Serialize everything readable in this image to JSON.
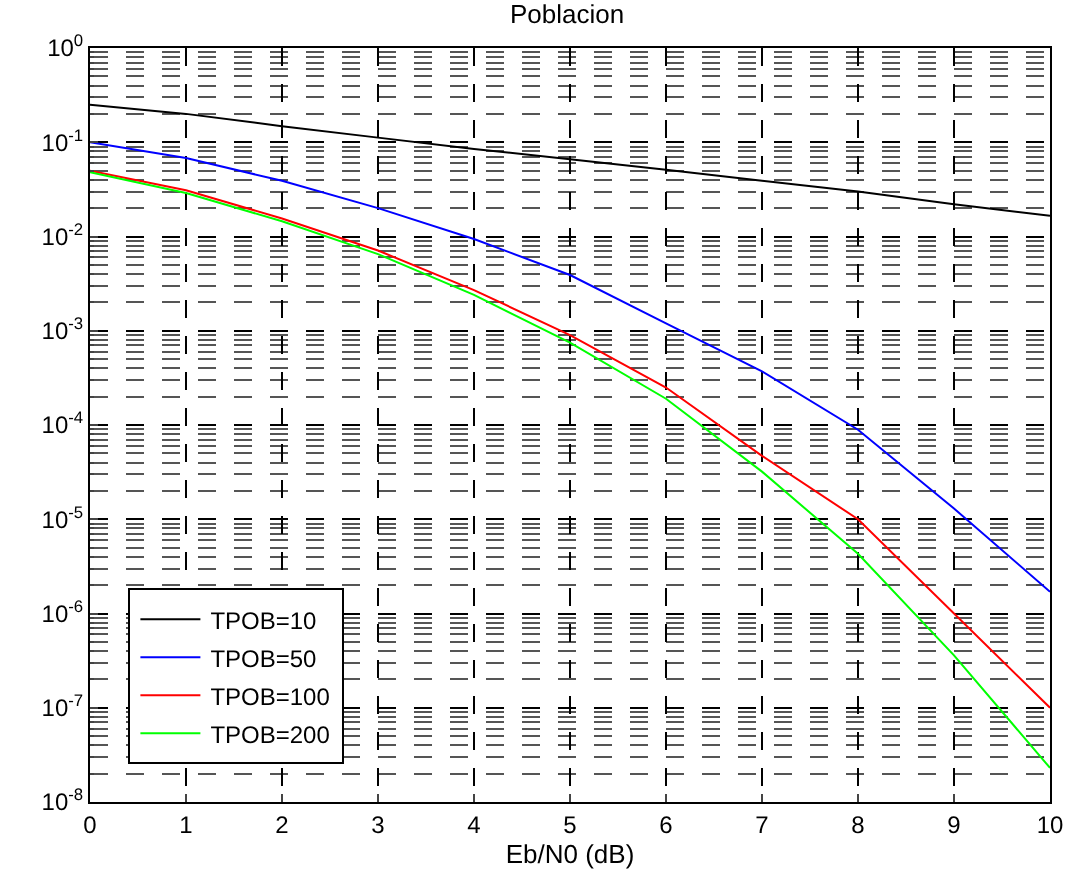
{
  "chart_data": {
    "type": "line",
    "title": "Poblacion",
    "xlabel": "Eb/N0 (dB)",
    "x": [
      0,
      1,
      2,
      3,
      4,
      5,
      6,
      7,
      8,
      9,
      10
    ],
    "series": [
      {
        "name": "TPOB=10",
        "color": "#000000",
        "values": [
          0.25,
          0.2,
          0.148,
          0.112,
          0.085,
          0.066,
          0.051,
          0.039,
          0.03,
          0.022,
          0.0166
        ]
      },
      {
        "name": "TPOB=50",
        "color": "#0000ff",
        "values": [
          0.1,
          0.068,
          0.039,
          0.02,
          0.0094,
          0.0039,
          0.0012,
          0.00037,
          8.9e-05,
          1.3e-05,
          1.7e-06
        ]
      },
      {
        "name": "TPOB=100",
        "color": "#ff0000",
        "values": [
          0.05,
          0.031,
          0.0155,
          0.0071,
          0.0027,
          0.0009,
          0.00025,
          4.7e-05,
          1e-05,
          1e-06,
          1e-07
        ]
      },
      {
        "name": "TPOB=200",
        "color": "#00ff00",
        "values": [
          0.048,
          0.029,
          0.0145,
          0.0065,
          0.0024,
          0.00075,
          0.00019,
          3.2e-05,
          4.3e-06,
          3.6e-07,
          2.3e-08
        ]
      }
    ],
    "xlim": [
      0,
      10
    ],
    "xticks": [
      0,
      1,
      2,
      3,
      4,
      5,
      6,
      7,
      8,
      9,
      10
    ],
    "ylim": [
      1e-08,
      1
    ],
    "yticks": [
      {
        "value": 1e-08,
        "label": "10$^{-8}$"
      },
      {
        "value": 1e-07,
        "label": "10$^{-7}$"
      },
      {
        "value": 1e-06,
        "label": "10$^{-6}$"
      },
      {
        "value": 1e-05,
        "label": "10$^{-5}$"
      },
      {
        "value": 0.0001,
        "label": "10$^{-4}$"
      },
      {
        "value": 0.001,
        "label": "10$^{-3}$"
      },
      {
        "value": 0.01,
        "label": "10$^{-2}$"
      },
      {
        "value": 0.1,
        "label": "10$^{-1}$"
      },
      {
        "value": 1,
        "label": "10$^{0}$"
      }
    ],
    "log": true,
    "grid": true,
    "legend": "bottom left",
    "marker": "none",
    "line_style": "solid"
  }
}
